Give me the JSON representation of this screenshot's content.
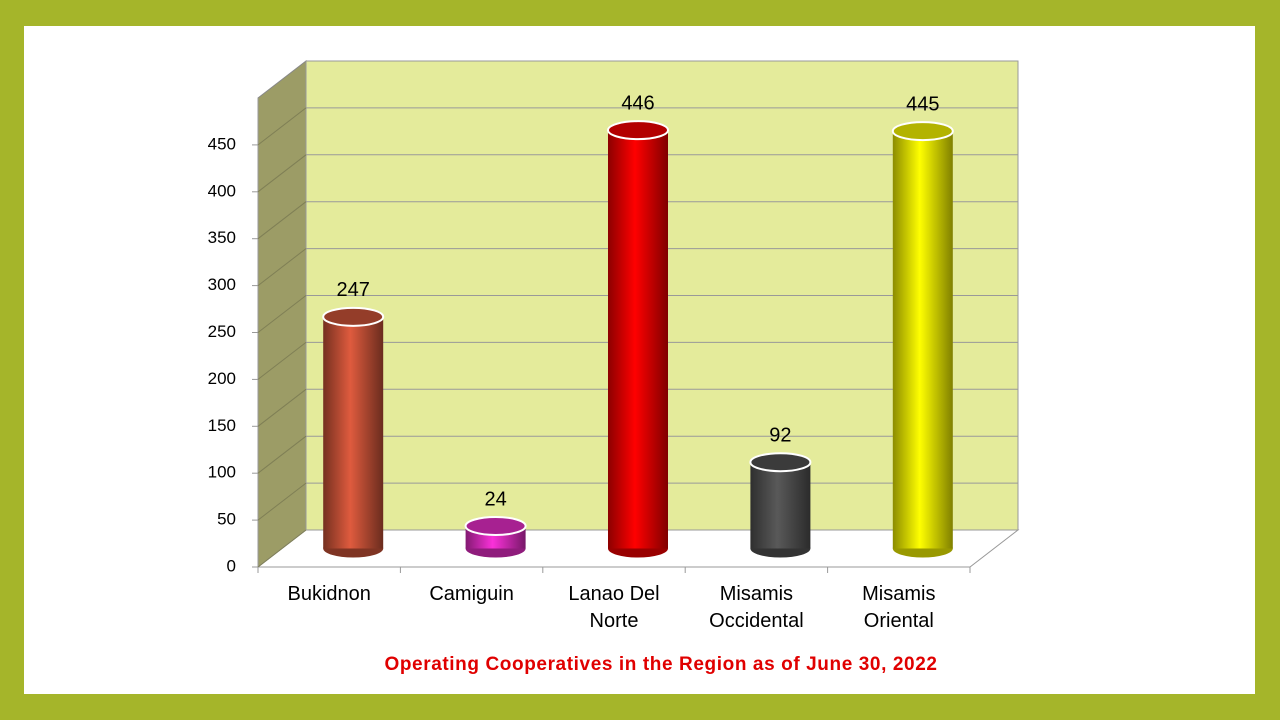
{
  "chart_data": {
    "type": "bar",
    "title": "Operating Cooperatives in the Region as of June 30, 2022",
    "categories": [
      "Bukidnon",
      "Camiguin",
      "Lanao Del Norte",
      "Misamis Occidental",
      "Misamis Oriental"
    ],
    "values": [
      247,
      24,
      446,
      92,
      445
    ],
    "colors": [
      "#d4573b",
      "#ee2fcf",
      "#ff0000",
      "#555555",
      "#ffff00"
    ],
    "ylim": [
      0,
      500
    ],
    "yticks": [
      0,
      50,
      100,
      150,
      200,
      250,
      300,
      350,
      400,
      450
    ],
    "grid": true
  }
}
